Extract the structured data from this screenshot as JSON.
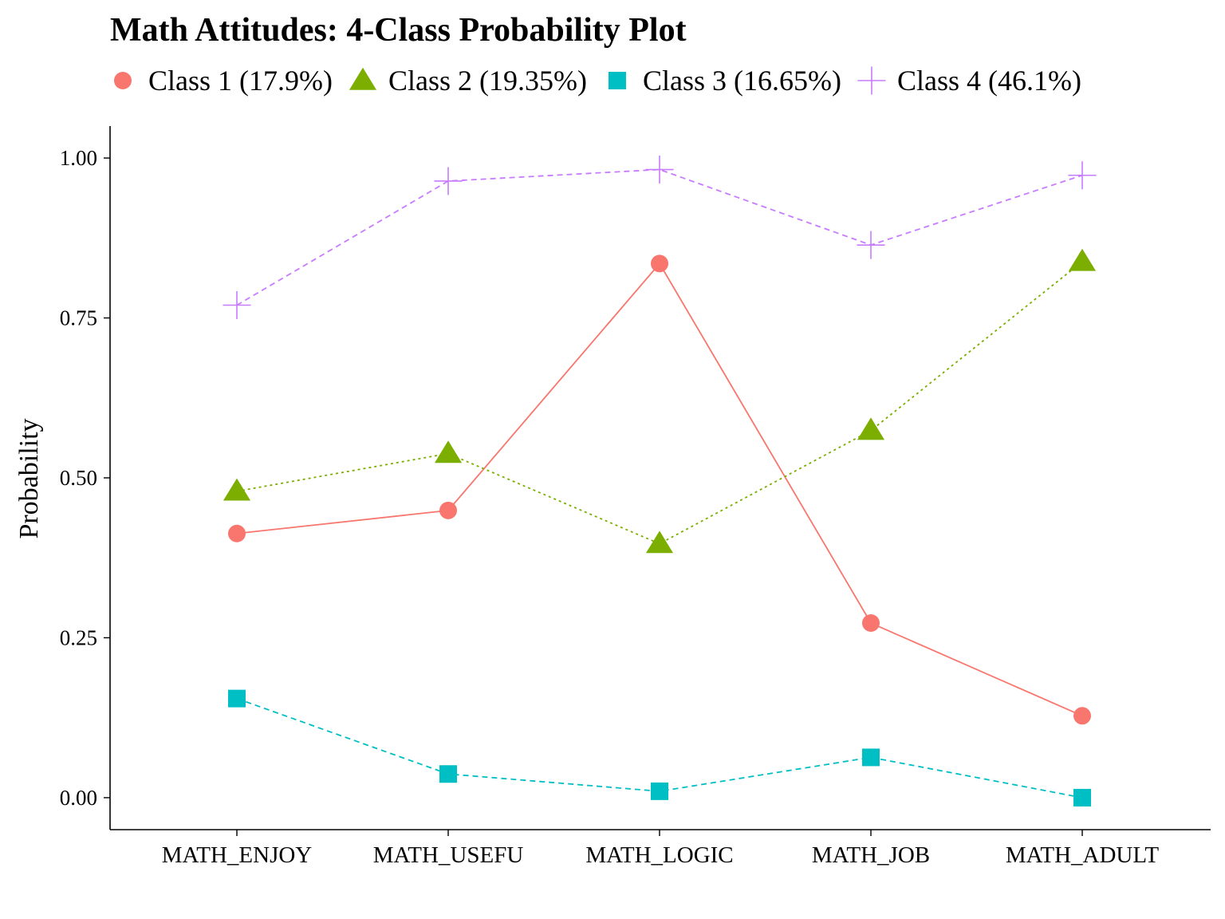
{
  "chart_data": {
    "type": "line",
    "title": "Math Attitudes: 4-Class Probability Plot",
    "xlabel": "",
    "ylabel": "Probability",
    "ylim": [
      -0.05,
      1.05
    ],
    "yticks": [
      0,
      0.25,
      0.5,
      0.75,
      1
    ],
    "ytick_labels": [
      "0.00",
      "0.25",
      "0.50",
      "0.75",
      "1.00"
    ],
    "grid": false,
    "legend_position": "top",
    "categories": [
      "MATH_ENJOY",
      "MATH_USEFU",
      "MATH_LOGIC",
      "MATH_JOB",
      "MATH_ADULT"
    ],
    "series": [
      {
        "name": "Class 1 (17.9%)",
        "color": "#F8766D",
        "marker": "circle",
        "line_style": "solid",
        "values": [
          0.413,
          0.449,
          0.835,
          0.273,
          0.128
        ]
      },
      {
        "name": "Class 2 (19.35%)",
        "color": "#7CAE00",
        "marker": "triangle",
        "line_style": "dotted",
        "values": [
          0.479,
          0.538,
          0.397,
          0.574,
          0.838
        ]
      },
      {
        "name": "Class 3 (16.65%)",
        "color": "#00BFC4",
        "marker": "square",
        "line_style": "dashed",
        "values": [
          0.155,
          0.037,
          0.01,
          0.063,
          0.0
        ]
      },
      {
        "name": "Class 4 (46.1%)",
        "color": "#C77CFF",
        "marker": "plus",
        "line_style": "dashed",
        "values": [
          0.77,
          0.964,
          0.982,
          0.864,
          0.973
        ]
      }
    ]
  }
}
